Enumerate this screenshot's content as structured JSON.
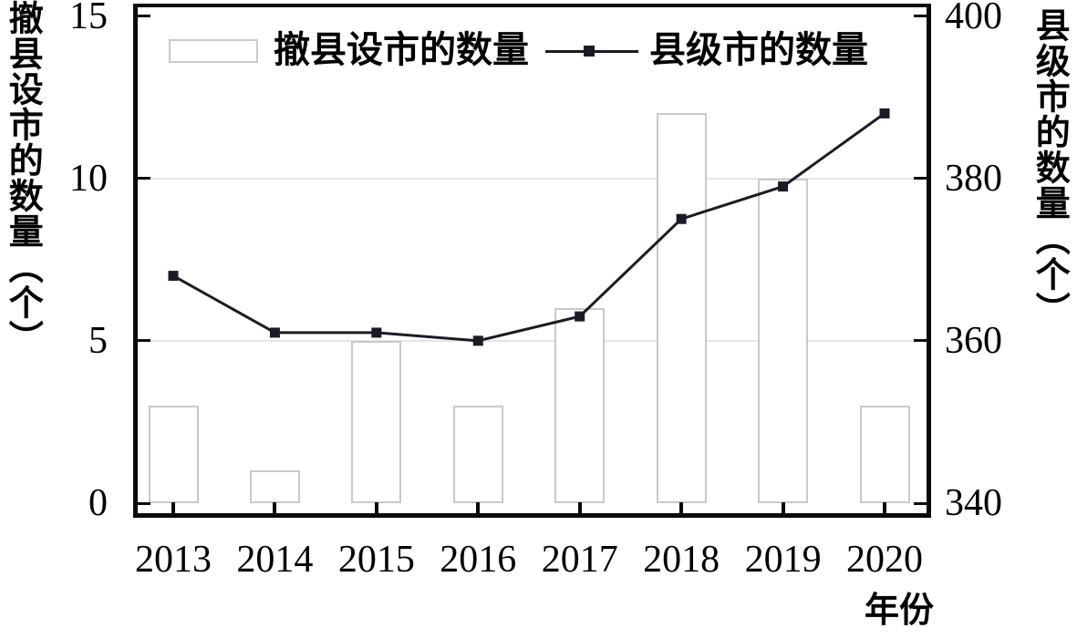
{
  "figure": {
    "left_axis_title": "撤县设市的数量（个）",
    "right_axis_title": "县级市的数量（个）",
    "x_axis_title": "年份"
  },
  "legend": {
    "bar_label": "撤县设市的数量",
    "line_label": "县级市的数量"
  },
  "chart_data": {
    "type": "bar+line (dual y-axis)",
    "categories": [
      "2013",
      "2014",
      "2015",
      "2016",
      "2017",
      "2018",
      "2019",
      "2020"
    ],
    "series": [
      {
        "name": "撤县设市的数量",
        "type": "bar",
        "axis": "left",
        "values": [
          3,
          1,
          5,
          3,
          6,
          12,
          10,
          3
        ]
      },
      {
        "name": "县级市的数量",
        "type": "line",
        "axis": "right",
        "values": [
          368,
          361,
          361,
          360,
          363,
          375,
          379,
          388
        ]
      }
    ],
    "left_axis": {
      "label": "撤县设市的数量（个）",
      "range": [
        0,
        15
      ],
      "ticks": [
        0,
        5,
        10,
        15
      ]
    },
    "right_axis": {
      "label": "县级市的数量（个）",
      "range": [
        340,
        400
      ],
      "ticks": [
        340,
        360,
        380,
        400
      ]
    },
    "x_axis": {
      "label": "年份"
    },
    "gridlines_at_left_values": [
      5,
      10
    ],
    "legend_position": "top-inside",
    "colors": {
      "bar_fill": "#ffffff",
      "bar_border": "#c6cac8",
      "line": "#1b1b28",
      "marker": "#1b1b28",
      "grid": "#e3e6e5",
      "frame": "#0a0a0a",
      "text": "#000000"
    }
  }
}
